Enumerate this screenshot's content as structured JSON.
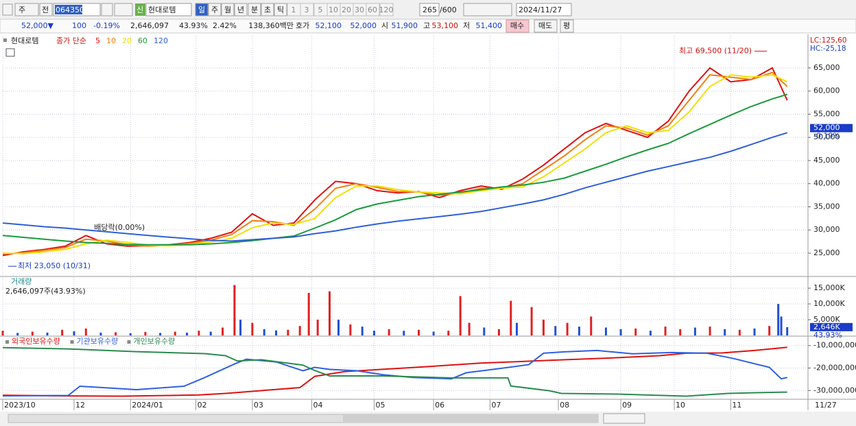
{
  "toolbar": {
    "period_type": "주",
    "scope": "전",
    "code": "064350",
    "badge": "신",
    "name": "현대로템",
    "periods": [
      "일",
      "주",
      "월",
      "년",
      "분",
      "초",
      "틱"
    ],
    "intervals": [
      "1",
      "3",
      "5",
      "10",
      "20",
      "30",
      "60",
      "120"
    ],
    "count": "265",
    "max": "/600",
    "date": "2024/11/27"
  },
  "info": {
    "price": "52,000▼",
    "change": "100",
    "change_rate": "-0.19%",
    "volume": "2,646,097",
    "turnover": "43.93%",
    "ratio": "2.42%",
    "amount": "138,360백만",
    "quote_label": "호가",
    "ask": "52,100",
    "bid": "52,000",
    "open_label": "시",
    "open": "51,900",
    "high_label": "고",
    "high": "53,100",
    "low_label": "저",
    "low": "51,400",
    "buy": "매수",
    "sell": "매도",
    "avg": "평"
  },
  "chart_data": [
    {
      "type": "line",
      "title": "현대로템",
      "legend_label": "종가 단순",
      "lc": "LC:125,60",
      "hc": "HC:-25,18",
      "x": [
        0,
        7,
        14,
        21,
        28,
        35,
        42,
        49,
        56,
        63,
        70,
        77,
        84,
        91,
        98,
        105,
        112,
        119,
        126,
        133,
        140,
        147,
        154,
        161,
        168,
        175,
        182,
        189,
        196,
        203,
        210,
        217,
        224,
        231,
        238,
        245,
        252,
        259,
        264
      ],
      "xlim": [
        0,
        271
      ],
      "ylim": [
        20110,
        71960
      ],
      "yticks": [
        {
          "value": 25000,
          "label": "25,000"
        },
        {
          "value": 30000,
          "label": "30,000"
        },
        {
          "value": 35000,
          "label": "35,000"
        },
        {
          "value": 40000,
          "label": "40,000"
        },
        {
          "value": 45000,
          "label": "45,000"
        },
        {
          "value": 50000,
          "label": "50,000"
        },
        {
          "value": 55000,
          "label": "55,000"
        },
        {
          "value": 60000,
          "label": "60,000"
        },
        {
          "value": 65000,
          "label": "65,000"
        }
      ],
      "grid": true,
      "series": [
        {
          "name": "5",
          "color": "#e01010",
          "values": [
            24500,
            25300,
            25800,
            26500,
            28800,
            27000,
            26500,
            26600,
            26800,
            27300,
            28200,
            29500,
            33500,
            31000,
            31500,
            36500,
            40500,
            40000,
            38500,
            38000,
            38300,
            37000,
            38500,
            39500,
            38800,
            41000,
            44000,
            47500,
            51000,
            53000,
            51500,
            50000,
            53500,
            60000,
            65000,
            62000,
            62500,
            65000,
            58000
          ]
        },
        {
          "name": "10",
          "color": "#f08010",
          "values": [
            24800,
            25100,
            25600,
            26200,
            28000,
            27600,
            26800,
            26500,
            26700,
            27100,
            27800,
            29000,
            32000,
            31800,
            31000,
            34500,
            39000,
            40000,
            39200,
            38300,
            38200,
            37500,
            38000,
            39000,
            39000,
            40000,
            43000,
            46000,
            49500,
            52500,
            52000,
            50500,
            52500,
            58000,
            63500,
            63000,
            62500,
            64000,
            61000
          ]
        },
        {
          "name": "20",
          "color": "#f0e000",
          "values": [
            25000,
            24900,
            25300,
            25800,
            27000,
            27800,
            27300,
            26700,
            26600,
            26900,
            27400,
            28200,
            30500,
            31500,
            31200,
            32500,
            37000,
            39500,
            39500,
            38700,
            38200,
            38000,
            37800,
            38500,
            39000,
            39300,
            41500,
            44500,
            47500,
            51000,
            52500,
            51000,
            51500,
            55500,
            61000,
            63500,
            63000,
            63500,
            62000
          ]
        },
        {
          "name": "60",
          "color": "#1a9a3a",
          "values": [
            28800,
            28400,
            28000,
            27600,
            27300,
            27100,
            26900,
            26800,
            26800,
            26800,
            27000,
            27300,
            27700,
            28200,
            28700,
            30400,
            32200,
            34400,
            35600,
            36400,
            37200,
            37700,
            38200,
            38700,
            39300,
            39700,
            40300,
            41200,
            42700,
            44200,
            45800,
            47300,
            48700,
            50800,
            52800,
            54800,
            56700,
            58300,
            59300
          ]
        },
        {
          "name": "120",
          "color": "#2f5fd8",
          "values": [
            31500,
            31100,
            30700,
            30400,
            30000,
            29600,
            29200,
            28800,
            28450,
            28100,
            27750,
            27600,
            27900,
            28200,
            28500,
            29200,
            29800,
            30600,
            31300,
            31900,
            32400,
            32900,
            33400,
            34000,
            34800,
            35600,
            36500,
            37700,
            39100,
            40300,
            41500,
            42700,
            43700,
            44700,
            45700,
            47000,
            48500,
            50000,
            51000
          ]
        }
      ],
      "annotations": [
        {
          "text": "최고 69,500 (11/20)",
          "x": 259,
          "y": 69500
        },
        {
          "text": "최저 23,050 (10/31)",
          "x": 0,
          "y": 23050
        },
        {
          "text": "배당락(0.00%)",
          "x": 40
        }
      ],
      "last_value": {
        "value": 52000,
        "label": "52,000"
      },
      "last_change": "-0.19%"
    },
    {
      "type": "bar",
      "title": "거래량",
      "subtitle": "2,646,097주(43.93%)",
      "x": [
        0,
        5,
        10,
        15,
        20,
        24,
        28,
        33,
        38,
        43,
        48,
        53,
        58,
        62,
        66,
        70,
        74,
        78,
        80,
        84,
        88,
        92,
        96,
        100,
        103,
        106,
        110,
        113,
        117,
        121,
        125,
        130,
        135,
        140,
        145,
        150,
        154,
        157,
        162,
        167,
        171,
        173,
        178,
        182,
        186,
        190,
        194,
        198,
        203,
        208,
        213,
        218,
        223,
        228,
        233,
        238,
        243,
        248,
        253,
        258,
        261,
        262,
        264
      ],
      "values": [
        1500,
        800,
        1200,
        900,
        1800,
        1300,
        2200,
        900,
        1000,
        700,
        1100,
        800,
        1200,
        900,
        1500,
        1200,
        2500,
        16000,
        5000,
        4000,
        2000,
        1600,
        1800,
        3000,
        13500,
        5000,
        14000,
        5000,
        3500,
        2800,
        1500,
        2000,
        1500,
        1800,
        1200,
        1500,
        12500,
        4000,
        2500,
        2000,
        11000,
        4000,
        9000,
        5000,
        3000,
        4000,
        2800,
        6000,
        2500,
        2000,
        2200,
        1500,
        2800,
        2000,
        2500,
        2800,
        2000,
        1800,
        2200,
        3000,
        10000,
        6000,
        2646
      ],
      "colors": [
        "#e02020",
        "#2050d0",
        "#e02020",
        "#2050d0",
        "#e02020",
        "#2050d0",
        "#e02020",
        "#2050d0",
        "#e02020",
        "#2050d0",
        "#e02020",
        "#2050d0",
        "#e02020",
        "#2050d0",
        "#e02020",
        "#2050d0",
        "#e02020",
        "#e02020",
        "#2050d0",
        "#e02020",
        "#2050d0",
        "#2050d0",
        "#e02020",
        "#e02020",
        "#e02020",
        "#e02020",
        "#e02020",
        "#2050d0",
        "#e02020",
        "#2050d0",
        "#2050d0",
        "#e02020",
        "#2050d0",
        "#e02020",
        "#2050d0",
        "#e02020",
        "#e02020",
        "#e02020",
        "#2050d0",
        "#e02020",
        "#e02020",
        "#2050d0",
        "#e02020",
        "#e02020",
        "#2050d0",
        "#e02020",
        "#2050d0",
        "#e02020",
        "#2050d0",
        "#2050d0",
        "#e02020",
        "#2050d0",
        "#e02020",
        "#e02020",
        "#2050d0",
        "#e02020",
        "#2050d0",
        "#e02020",
        "#2050d0",
        "#e02020",
        "#2050d0",
        "#2050d0",
        "#2050d0"
      ],
      "xlim": [
        0,
        271
      ],
      "ylim": [
        0,
        18500
      ],
      "yticks": [
        {
          "value": 5000,
          "label": "5,000K"
        },
        {
          "value": 10000,
          "label": "10,000K"
        },
        {
          "value": 15000,
          "label": "15,000K"
        }
      ],
      "grid": true,
      "last_value": {
        "value": 2646,
        "label": "2,646K"
      },
      "last_ratio": "43.93%"
    },
    {
      "type": "line",
      "xlim": [
        0,
        271
      ],
      "ylim": [
        -33580000,
        -6120000
      ],
      "yticks": [
        {
          "value": -30000000,
          "label": "-30,000,000"
        },
        {
          "value": -20000000,
          "label": "-20,000,000"
        },
        {
          "value": -10000000,
          "label": "-10,000,000"
        }
      ],
      "xticks": [
        {
          "value": 0,
          "label": "2023/10"
        },
        {
          "value": 24,
          "label": "12"
        },
        {
          "value": 43,
          "label": "2024/01"
        },
        {
          "value": 65,
          "label": "02"
        },
        {
          "value": 84,
          "label": "03"
        },
        {
          "value": 104,
          "label": "04"
        },
        {
          "value": 125,
          "label": "05"
        },
        {
          "value": 145,
          "label": "06"
        },
        {
          "value": 164,
          "label": "07"
        },
        {
          "value": 187,
          "label": "08"
        },
        {
          "value": 208,
          "label": "09"
        },
        {
          "value": 226,
          "label": "10"
        },
        {
          "value": 245,
          "label": "11"
        }
      ],
      "x_end_label": "11/27",
      "grid": true,
      "series": [
        {
          "name": "외국인보유수량",
          "color": "#e01010",
          "x": [
            0,
            20,
            40,
            66,
            75,
            100,
            105,
            115,
            138,
            161,
            184,
            207,
            221,
            230,
            242,
            253,
            264
          ],
          "values": [
            -32100000,
            -32400000,
            -32500000,
            -32000000,
            -31300000,
            -28700000,
            -23700000,
            -21600000,
            -19800000,
            -17800000,
            -16600000,
            -15400000,
            -14500000,
            -13400000,
            -13300000,
            -12200000,
            -10800000
          ]
        },
        {
          "name": "기관보유수량",
          "color": "#2f5fe0",
          "x": [
            0,
            22,
            26,
            45,
            61,
            68,
            78,
            82,
            92,
            101,
            105,
            110,
            119,
            128,
            138,
            151,
            156,
            165,
            177,
            182,
            189,
            200,
            212,
            225,
            237,
            246,
            258,
            262,
            264
          ],
          "values": [
            -32400000,
            -32200000,
            -28100000,
            -29600000,
            -28100000,
            -24200000,
            -18200000,
            -16100000,
            -17300000,
            -21200000,
            -19700000,
            -20600000,
            -21200000,
            -23000000,
            -24200000,
            -24800000,
            -22100000,
            -20600000,
            -18500000,
            -13400000,
            -12800000,
            -12200000,
            -13700000,
            -13100000,
            -13400000,
            -15800000,
            -19700000,
            -24800000,
            -24200000
          ]
        },
        {
          "name": "개인보유수량",
          "color": "#2a8a50",
          "x": [
            0,
            22,
            45,
            68,
            75,
            79,
            87,
            101,
            105,
            110,
            128,
            151,
            170,
            171,
            184,
            188,
            207,
            230,
            244,
            253,
            264
          ],
          "values": [
            -10900000,
            -11500000,
            -12700000,
            -13600000,
            -14500000,
            -16900000,
            -16300000,
            -18700000,
            -21100000,
            -23500000,
            -23500000,
            -24400000,
            -24400000,
            -28000000,
            -30100000,
            -31300000,
            -31600000,
            -32500000,
            -31300000,
            -31000000,
            -30700000
          ]
        }
      ]
    }
  ]
}
